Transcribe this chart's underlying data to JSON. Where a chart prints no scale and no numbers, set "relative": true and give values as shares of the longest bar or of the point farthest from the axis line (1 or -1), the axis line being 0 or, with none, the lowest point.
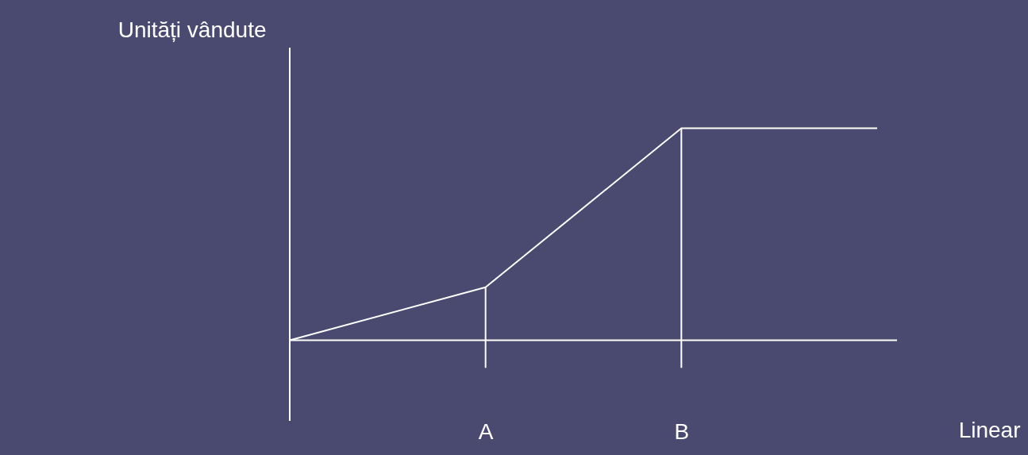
{
  "chart_data": {
    "type": "line",
    "relative": true,
    "xlabel": "Linear",
    "ylabel": "Unități vândute",
    "categories": [
      null,
      "A",
      "B",
      null
    ],
    "series": [
      {
        "color": "#ffffff",
        "values": [
          0,
          0.25,
          1,
          1
        ]
      }
    ],
    "ref_lines": [
      {
        "axis": "x",
        "value": "A",
        "color": "#ffffff"
      },
      {
        "axis": "x",
        "value": "B",
        "color": "#ffffff"
      }
    ],
    "grid": false,
    "marker": "none",
    "line_style": "solid"
  }
}
